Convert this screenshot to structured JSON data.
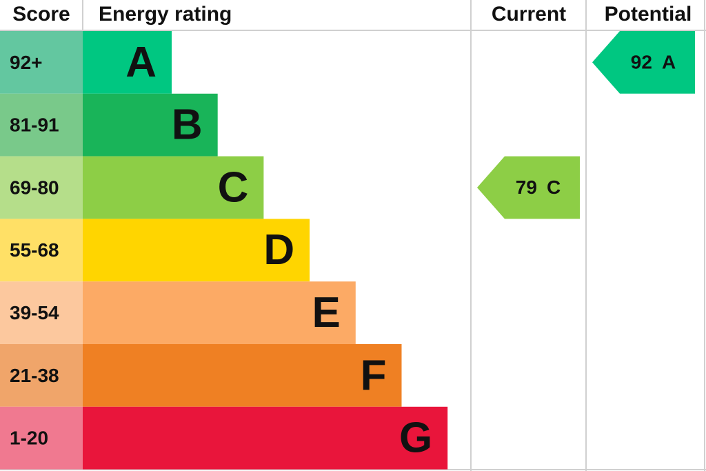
{
  "header": {
    "score": "Score",
    "rating": "Energy rating",
    "current": "Current",
    "potential": "Potential"
  },
  "bands": [
    {
      "score": "92+",
      "letter": "A",
      "color": "#00c781",
      "score_color": "#63c7a0"
    },
    {
      "score": "81-91",
      "letter": "B",
      "color": "#19b459",
      "score_color": "#79c98a"
    },
    {
      "score": "69-80",
      "letter": "C",
      "color": "#8dce46",
      "score_color": "#b5de8a"
    },
    {
      "score": "55-68",
      "letter": "D",
      "color": "#ffd500",
      "score_color": "#ffe066"
    },
    {
      "score": "39-54",
      "letter": "E",
      "color": "#fcaa65",
      "score_color": "#fcc89e"
    },
    {
      "score": "21-38",
      "letter": "F",
      "color": "#ef8023",
      "score_color": "#f0a56a"
    },
    {
      "score": "1-20",
      "letter": "G",
      "color": "#e9153b",
      "score_color": "#f07990"
    }
  ],
  "current": {
    "score": "79",
    "letter": "C"
  },
  "potential": {
    "score": "92",
    "letter": "A"
  }
}
